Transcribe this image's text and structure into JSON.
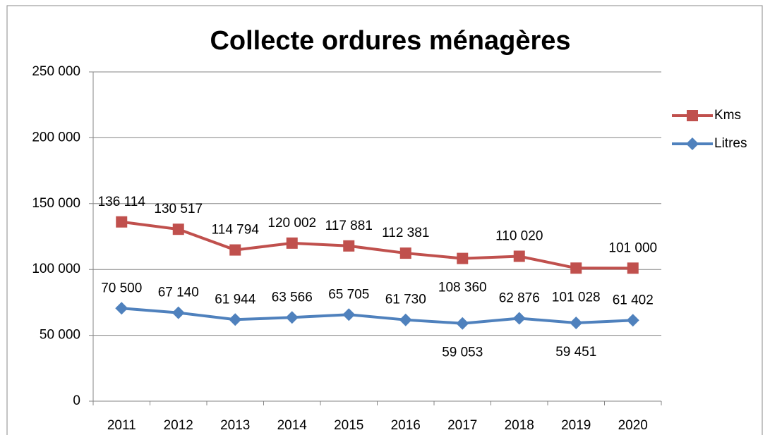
{
  "chart_data": {
    "type": "line",
    "title": "Collecte ordures ménagères",
    "categories": [
      "2011",
      "2012",
      "2013",
      "2014",
      "2015",
      "2016",
      "2017",
      "2018",
      "2019",
      "2020"
    ],
    "series": [
      {
        "name": "Kms",
        "color": "#c0504d",
        "marker": "square",
        "values": [
          136114,
          130517,
          114794,
          120002,
          117881,
          112381,
          108360,
          110020,
          101028,
          101000
        ],
        "value_labels": [
          "136 114",
          "130 517",
          "114 794",
          "120 002",
          "117 881",
          "112 381",
          "108 360",
          "110 020",
          "101 028",
          "101 000"
        ]
      },
      {
        "name": "Litres",
        "color": "#4f81bd",
        "marker": "diamond",
        "values": [
          70500,
          67140,
          61944,
          63566,
          65705,
          61730,
          59053,
          62876,
          59451,
          61402
        ],
        "value_labels": [
          "70 500",
          "67 140",
          "61 944",
          "63 566",
          "65 705",
          "61 730",
          "59 053",
          "62 876",
          "59 451",
          "61 402"
        ]
      }
    ],
    "ylim": [
      0,
      250000
    ],
    "yticks": [
      0,
      {
        "value": 50000,
        "label": "50 000"
      },
      {
        "value": 100000,
        "label": "100 000"
      },
      {
        "value": 150000,
        "label": "150 000"
      },
      {
        "value": 200000,
        "label": "200 000"
      },
      {
        "value": 250000,
        "label": "250 000"
      }
    ],
    "grid": true,
    "legend": "right"
  }
}
